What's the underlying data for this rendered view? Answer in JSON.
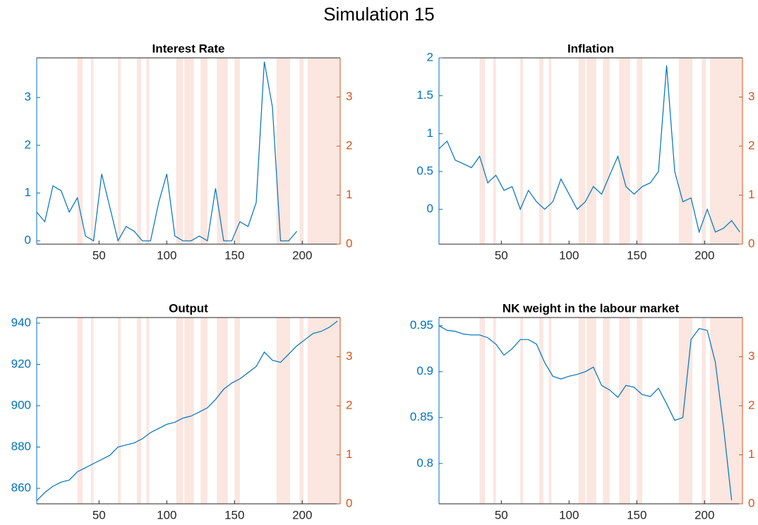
{
  "title": "Simulation 15",
  "chart_data": [
    {
      "type": "line",
      "title": "Interest Rate",
      "x": [
        4,
        10,
        16,
        22,
        28,
        34,
        40,
        46,
        52,
        58,
        64,
        70,
        76,
        82,
        88,
        94,
        100,
        106,
        112,
        118,
        124,
        130,
        136,
        142,
        148,
        154,
        160,
        166,
        172,
        178,
        184,
        190,
        196,
        202,
        208,
        214,
        220,
        226
      ],
      "series": [
        {
          "color": "#0072bd",
          "values": [
            0.6,
            0.4,
            1.15,
            1.05,
            0.6,
            0.9,
            0.1,
            0.0,
            1.4,
            0.7,
            0.0,
            0.3,
            0.2,
            0.0,
            0.0,
            0.8,
            1.4,
            0.1,
            0.0,
            0.0,
            0.1,
            0.0,
            1.1,
            0.0,
            0.0,
            0.4,
            0.3,
            0.8,
            3.75,
            2.8,
            0.0,
            0.0,
            0.2,
            null,
            null,
            null,
            null,
            null
          ]
        }
      ],
      "xlim": [
        4,
        228
      ],
      "xticks": [
        50,
        100,
        150,
        200
      ],
      "ylim": [
        -0.07,
        3.83
      ],
      "yticks": [
        0,
        1,
        2,
        3
      ],
      "y2lim": [
        0,
        3.8
      ],
      "y2ticks": [
        0,
        1,
        2,
        3
      ],
      "y2color": "#d95319",
      "shaded_regions": [
        [
          34,
          38
        ],
        [
          44,
          46
        ],
        [
          64,
          66
        ],
        [
          78,
          81
        ],
        [
          85,
          87
        ],
        [
          107,
          112
        ],
        [
          113,
          120
        ],
        [
          125,
          130
        ],
        [
          137,
          145
        ],
        [
          150,
          154
        ],
        [
          181,
          191
        ],
        [
          198,
          201
        ],
        [
          204,
          228
        ]
      ],
      "shade_color": "#fbe6e0"
    },
    {
      "type": "line",
      "title": "Inflation",
      "x": [
        4,
        10,
        16,
        22,
        28,
        34,
        40,
        46,
        52,
        58,
        64,
        70,
        76,
        82,
        88,
        94,
        100,
        106,
        112,
        118,
        124,
        130,
        136,
        142,
        148,
        154,
        160,
        166,
        172,
        178,
        184,
        190,
        196,
        202,
        208,
        214,
        220,
        226
      ],
      "series": [
        {
          "color": "#0072bd",
          "values": [
            0.8,
            0.9,
            0.65,
            0.6,
            0.55,
            0.7,
            0.35,
            0.45,
            0.25,
            0.3,
            0.0,
            0.25,
            0.1,
            0.0,
            0.1,
            0.4,
            0.2,
            0.0,
            0.1,
            0.3,
            0.2,
            0.45,
            0.7,
            0.3,
            0.2,
            0.3,
            0.35,
            0.5,
            1.9,
            0.5,
            0.1,
            0.15,
            -0.3,
            0.0,
            -0.3,
            -0.25,
            -0.15,
            -0.3
          ]
        }
      ],
      "xlim": [
        4,
        228
      ],
      "xticks": [
        50,
        100,
        150,
        200
      ],
      "ylim": [
        -0.46,
        2.0
      ],
      "yticks": [
        0,
        0.5,
        1,
        1.5,
        2
      ],
      "y2lim": [
        0,
        3.8
      ],
      "y2ticks": [
        0,
        1,
        2,
        3
      ],
      "y2color": "#d95319",
      "shaded_regions": [
        [
          34,
          38
        ],
        [
          44,
          46
        ],
        [
          64,
          66
        ],
        [
          78,
          81
        ],
        [
          85,
          87
        ],
        [
          107,
          112
        ],
        [
          113,
          120
        ],
        [
          125,
          130
        ],
        [
          137,
          145
        ],
        [
          150,
          154
        ],
        [
          181,
          191
        ],
        [
          198,
          201
        ],
        [
          204,
          228
        ]
      ],
      "shade_color": "#fbe6e0"
    },
    {
      "type": "line",
      "title": "Output",
      "x": [
        4,
        10,
        16,
        22,
        28,
        34,
        40,
        46,
        52,
        58,
        64,
        70,
        76,
        82,
        88,
        94,
        100,
        106,
        112,
        118,
        124,
        130,
        136,
        142,
        148,
        154,
        160,
        166,
        172,
        178,
        184,
        190,
        196,
        202,
        208,
        214,
        220,
        226
      ],
      "series": [
        {
          "color": "#0072bd",
          "values": [
            854,
            858,
            861,
            863,
            864,
            868,
            870,
            872,
            874,
            876,
            880,
            881,
            882,
            884,
            887,
            889,
            891,
            892,
            894,
            895,
            897,
            899,
            903,
            908,
            911,
            913,
            916,
            919,
            926,
            922,
            921,
            925,
            929,
            932,
            935,
            936,
            938,
            941
          ]
        }
      ],
      "xlim": [
        4,
        228
      ],
      "xticks": [
        50,
        100,
        150,
        200
      ],
      "ylim": [
        852.5,
        942.7
      ],
      "yticks": [
        860,
        880,
        900,
        920,
        940
      ],
      "y2lim": [
        0,
        3.8
      ],
      "y2ticks": [
        0,
        1,
        2,
        3
      ],
      "y2color": "#d95319",
      "shaded_regions": [
        [
          34,
          38
        ],
        [
          44,
          46
        ],
        [
          64,
          66
        ],
        [
          78,
          81
        ],
        [
          85,
          87
        ],
        [
          107,
          112
        ],
        [
          113,
          120
        ],
        [
          125,
          130
        ],
        [
          137,
          145
        ],
        [
          150,
          154
        ],
        [
          181,
          191
        ],
        [
          198,
          201
        ],
        [
          204,
          228
        ]
      ],
      "shade_color": "#fbe6e0"
    },
    {
      "type": "line",
      "title": "NK weight in the labour market",
      "x": [
        4,
        10,
        16,
        22,
        28,
        34,
        40,
        46,
        52,
        58,
        64,
        70,
        76,
        82,
        88,
        94,
        100,
        106,
        112,
        118,
        124,
        130,
        136,
        142,
        148,
        154,
        160,
        166,
        172,
        178,
        184,
        190,
        196,
        202,
        208,
        214,
        220,
        226
      ],
      "series": [
        {
          "color": "#0072bd",
          "values": [
            0.95,
            0.945,
            0.944,
            0.941,
            0.94,
            0.94,
            0.937,
            0.93,
            0.918,
            0.925,
            0.935,
            0.935,
            0.93,
            0.91,
            0.895,
            0.892,
            0.895,
            0.897,
            0.9,
            0.905,
            0.885,
            0.88,
            0.872,
            0.885,
            0.883,
            0.875,
            0.873,
            0.882,
            0.865,
            0.847,
            0.85,
            0.935,
            0.947,
            0.945,
            0.91,
            0.84,
            0.76,
            null
          ]
        }
      ],
      "xlim": [
        4,
        228
      ],
      "xticks": [
        50,
        100,
        150,
        200
      ],
      "ylim": [
        0.756,
        0.959
      ],
      "yticks": [
        0.8,
        0.85,
        0.9,
        0.95
      ],
      "y2lim": [
        0,
        3.8
      ],
      "y2ticks": [
        0,
        1,
        2,
        3
      ],
      "y2color": "#d95319",
      "shaded_regions": [
        [
          34,
          38
        ],
        [
          44,
          46
        ],
        [
          64,
          66
        ],
        [
          78,
          81
        ],
        [
          85,
          87
        ],
        [
          107,
          112
        ],
        [
          113,
          120
        ],
        [
          125,
          130
        ],
        [
          137,
          145
        ],
        [
          150,
          154
        ],
        [
          181,
          191
        ],
        [
          198,
          201
        ],
        [
          204,
          228
        ]
      ],
      "shade_color": "#fbe6e0"
    }
  ]
}
